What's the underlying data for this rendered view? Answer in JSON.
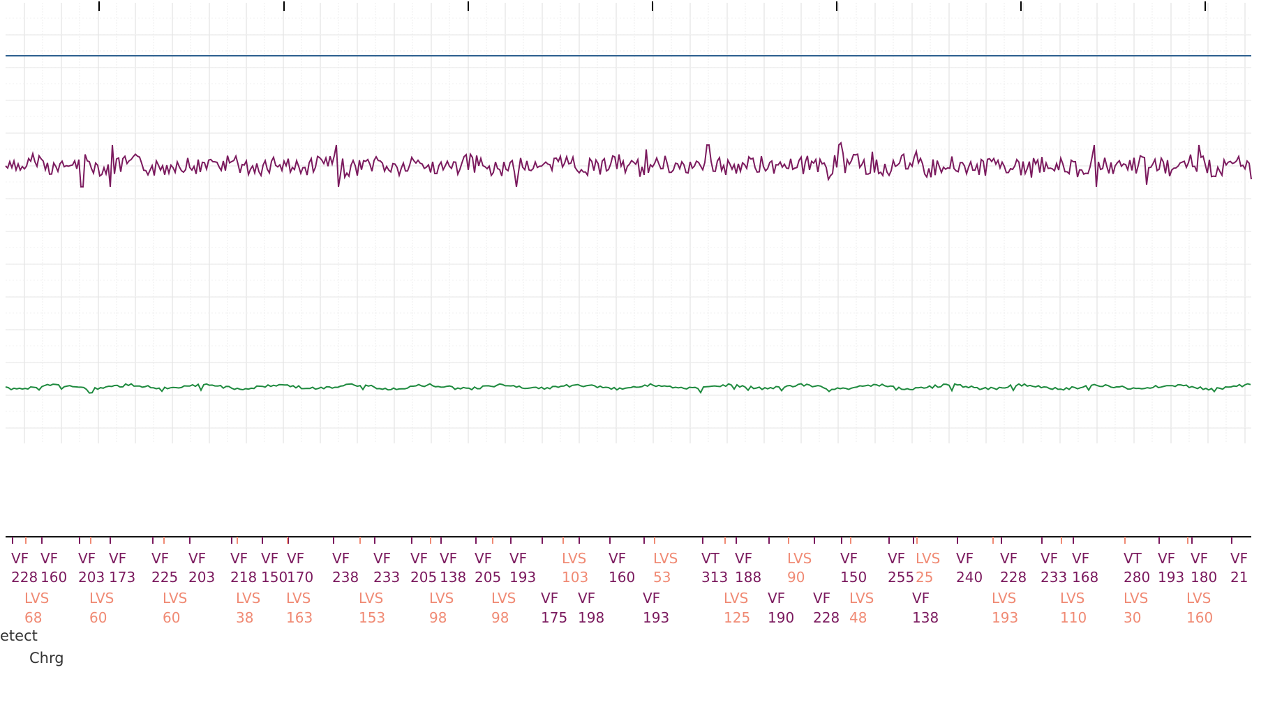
{
  "chart_data": {
    "type": "line",
    "title": "",
    "grid": true,
    "colors": {
      "top_trace": "#2d5f8f",
      "middle_trace": "#7b1a5e",
      "bottom_trace": "#1e8a3e",
      "vf_marker": "#7b1a5e",
      "lvs_marker": "#f08a74",
      "timeline": "#111111"
    },
    "series": [
      {
        "description_key": "flat",
        "values": []
      },
      {
        "description_key": "fibrillation",
        "values": []
      },
      {
        "description_key": "low_amplitude",
        "values": []
      }
    ],
    "markers_row1": [
      {
        "code": "VF",
        "value": "228"
      },
      {
        "code": "VF",
        "value": "160"
      },
      {
        "code": "VF",
        "value": "203"
      },
      {
        "code": "VF",
        "value": "173"
      },
      {
        "code": "VF",
        "value": "225"
      },
      {
        "code": "VF",
        "value": "203"
      },
      {
        "code": "VF",
        "value": "218"
      },
      {
        "code": "VF",
        "value": "150"
      },
      {
        "code": "VF",
        "value": "170"
      },
      {
        "code": "VF",
        "value": "238"
      },
      {
        "code": "VF",
        "value": "233"
      },
      {
        "code": "VF",
        "value": "205"
      },
      {
        "code": "VF",
        "value": "138"
      },
      {
        "code": "VF",
        "value": "205"
      },
      {
        "code": "VF",
        "value": "193"
      },
      {
        "code": "LVS",
        "value": "103"
      },
      {
        "code": "VF",
        "value": "160"
      },
      {
        "code": "LVS",
        "value": "53"
      },
      {
        "code": "VT",
        "value": "313"
      },
      {
        "code": "VF",
        "value": "188"
      },
      {
        "code": "LVS",
        "value": "90"
      },
      {
        "code": "VF",
        "value": "150"
      },
      {
        "code": "VF",
        "value": "255"
      },
      {
        "code": "LVS",
        "value": "25"
      },
      {
        "code": "VF",
        "value": "240"
      },
      {
        "code": "VF",
        "value": "228"
      },
      {
        "code": "VF",
        "value": "233"
      },
      {
        "code": "VF",
        "value": "168"
      },
      {
        "code": "VT",
        "value": "280"
      },
      {
        "code": "VF",
        "value": "193"
      },
      {
        "code": "VF",
        "value": "180"
      },
      {
        "code": "VF",
        "value": "21"
      }
    ],
    "markers_row2": [
      {
        "code": "LVS",
        "value": "68"
      },
      {
        "code": "LVS",
        "value": "60"
      },
      {
        "code": "LVS",
        "value": "60"
      },
      {
        "code": "LVS",
        "value": "38"
      },
      {
        "code": "LVS",
        "value": "163"
      },
      {
        "code": "LVS",
        "value": "153"
      },
      {
        "code": "LVS",
        "value": "98"
      },
      {
        "code": "LVS",
        "value": "98"
      },
      {
        "code": "VF",
        "value": "175"
      },
      {
        "code": "VF",
        "value": "198"
      },
      {
        "code": "VF",
        "value": "193"
      },
      {
        "code": "LVS",
        "value": "125"
      },
      {
        "code": "VF",
        "value": "190"
      },
      {
        "code": "VF",
        "value": "228"
      },
      {
        "code": "LVS",
        "value": "48"
      },
      {
        "code": "VF",
        "value": "138"
      },
      {
        "code": "LVS",
        "value": "193"
      },
      {
        "code": "LVS",
        "value": "110"
      },
      {
        "code": "LVS",
        "value": "30"
      },
      {
        "code": "LVS",
        "value": "160"
      }
    ]
  },
  "status": {
    "detect_label": "etect",
    "charge_label": "Chrg"
  }
}
